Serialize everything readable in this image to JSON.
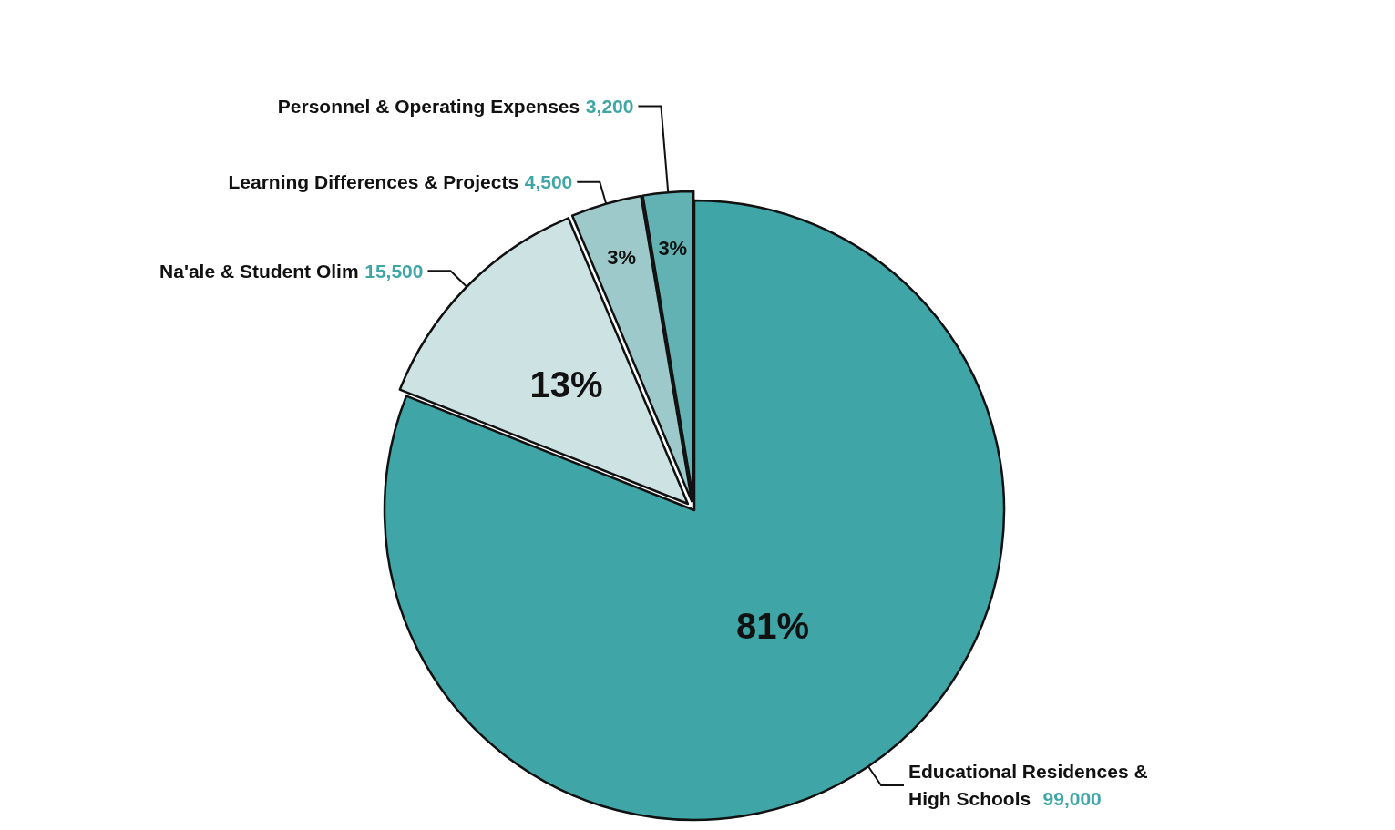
{
  "chart_data": {
    "type": "pie",
    "categories": [
      "Educational Residences & High Schools",
      "Na'ale & Student Olim",
      "Learning Differences & Projects",
      "Personnel & Operating Expenses"
    ],
    "values": [
      99000,
      15500,
      4500,
      3200
    ],
    "colors": [
      "#3fa5a6",
      "#cde3e3",
      "#9dc9ca",
      "#62b2b3"
    ],
    "annotations": [
      "81%",
      "13%",
      "3%",
      "3%"
    ],
    "value_labels": [
      "99,000",
      "15,500",
      "4,500",
      "3,200"
    ]
  }
}
